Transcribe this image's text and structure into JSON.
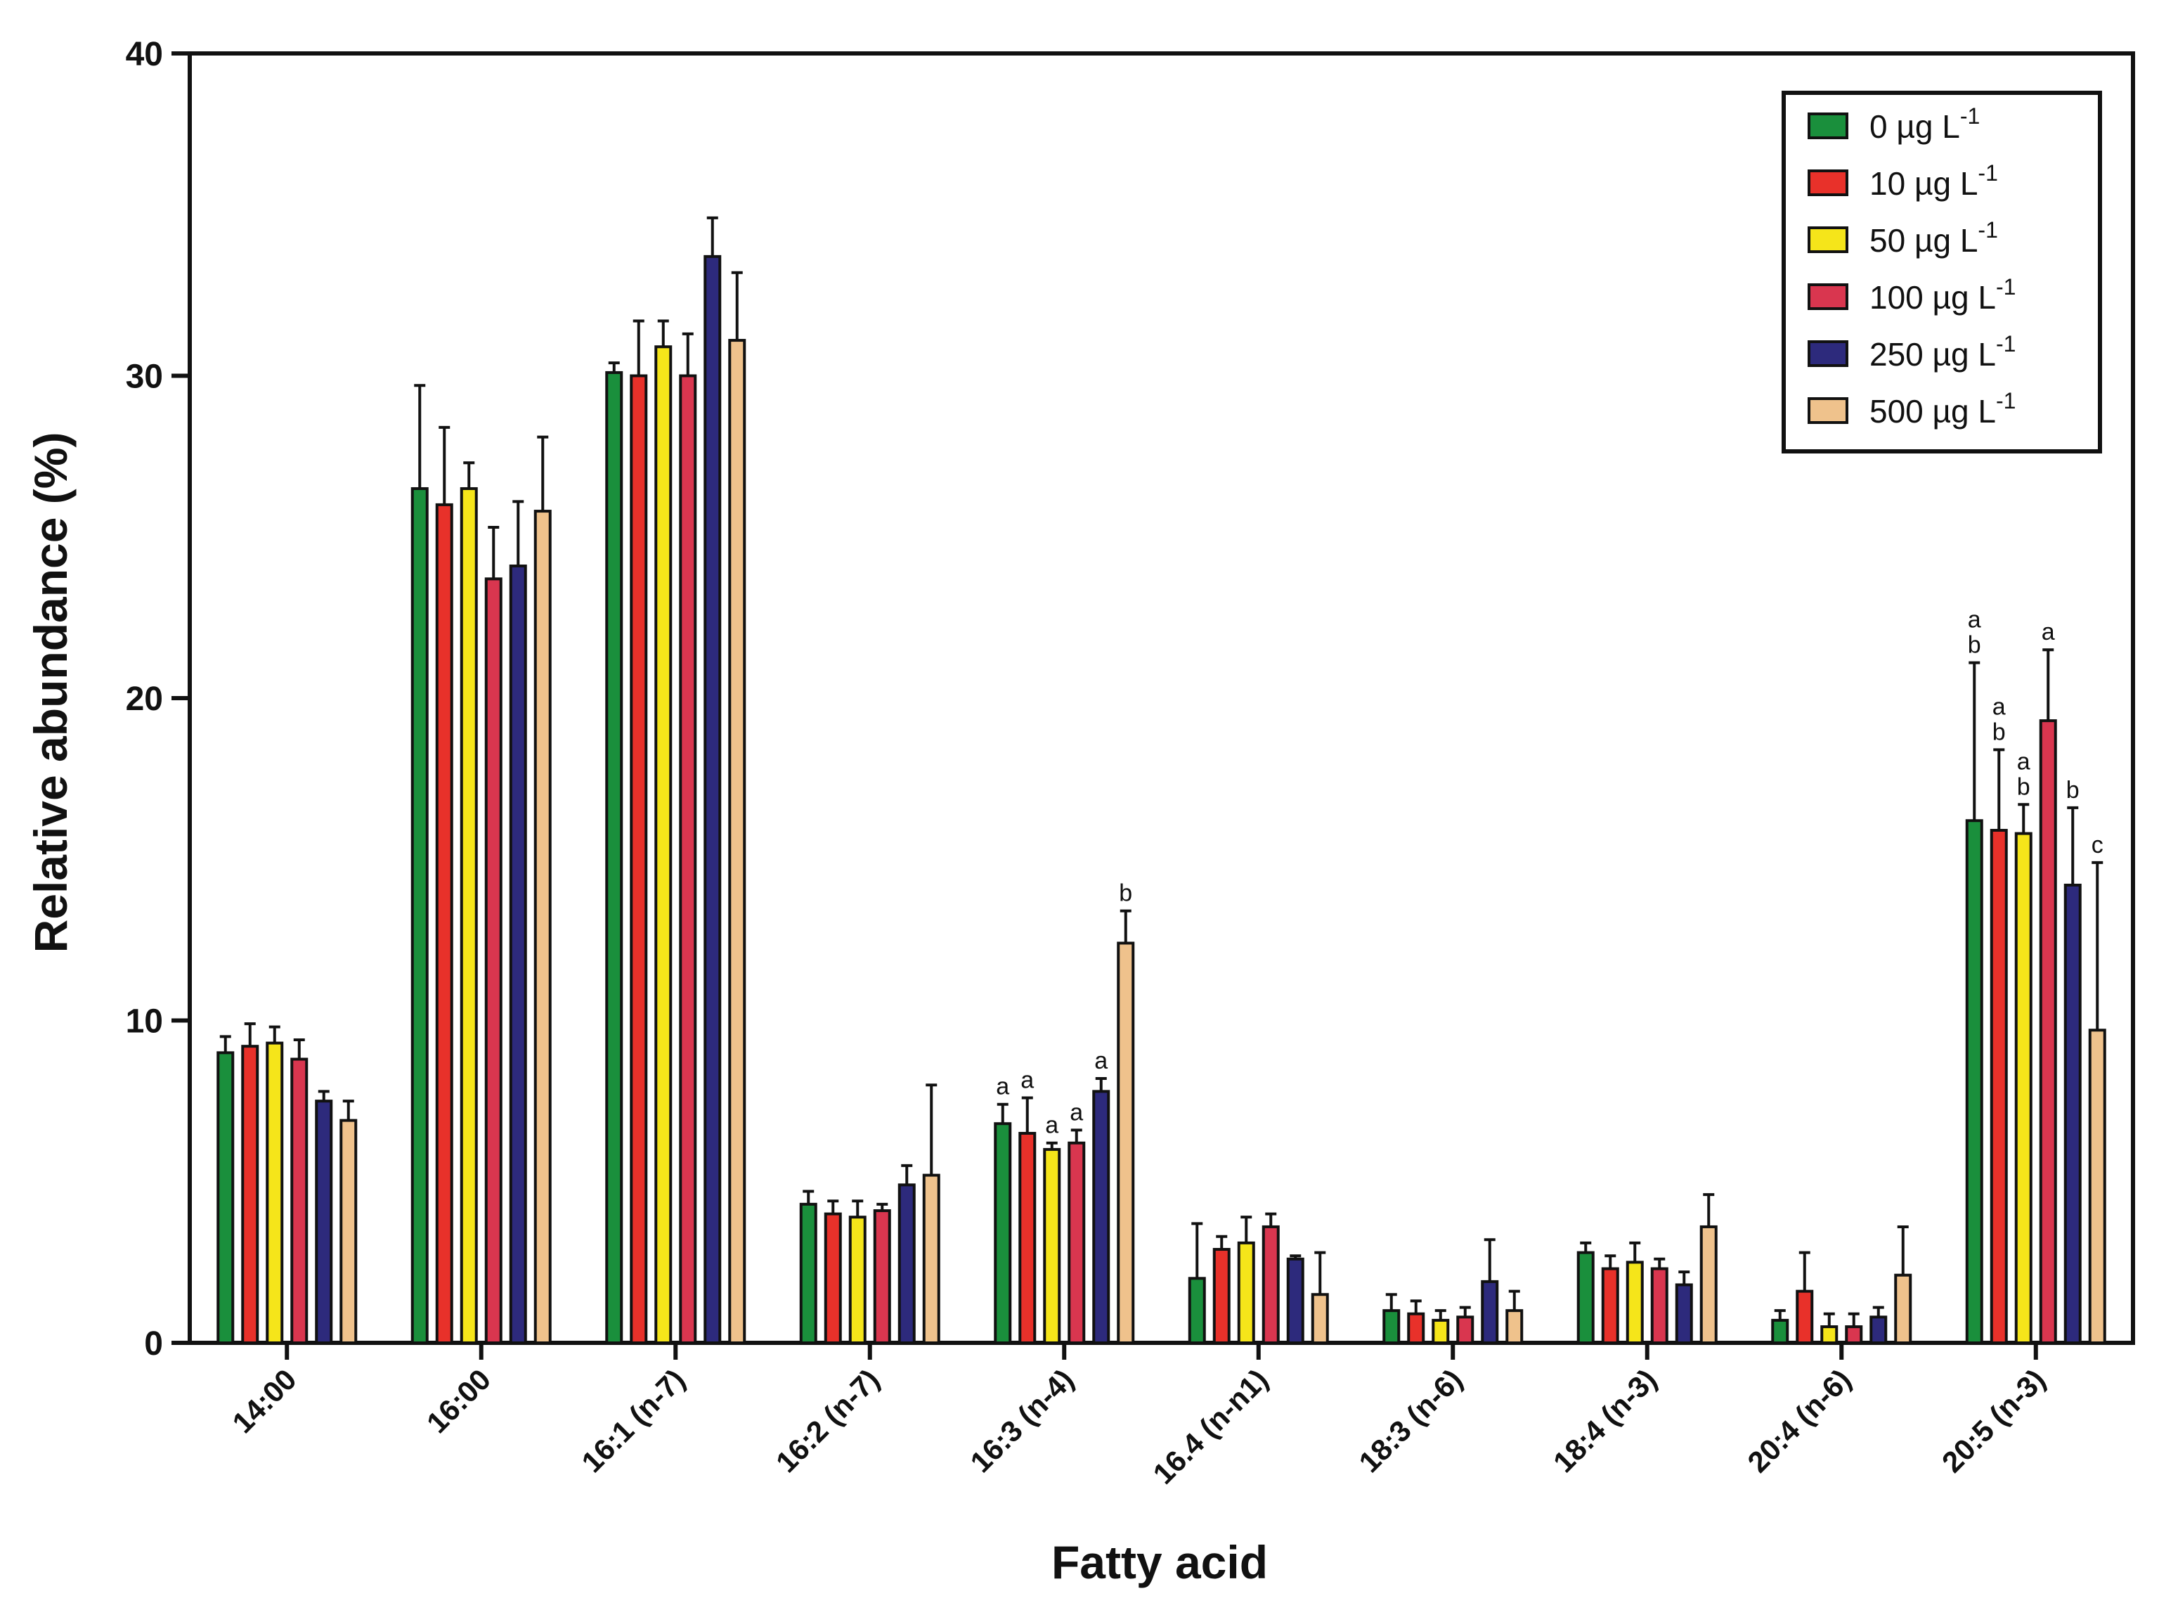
{
  "chart_data": {
    "type": "bar",
    "title": "",
    "xlabel": "Fatty acid",
    "ylabel": "Relative abundance (%)",
    "ylim": [
      0,
      40
    ],
    "yticks": [
      "0",
      "10",
      "20",
      "30",
      "40"
    ],
    "grid": false,
    "legend_position": "top-right",
    "categories": [
      "14:00",
      "16:00",
      "16:1 (n-7)",
      "16:2 (n-7)",
      "16:3 (n-4)",
      "16.4 (n-n1)",
      "18:3 (n-6)",
      "18:4 (n-3)",
      "20:4 (n-6)",
      "20:5 (n-3)"
    ],
    "series": [
      {
        "name": "0 µg L",
        "superscript": "-1",
        "color": "#1a8f3c",
        "values": [
          9.0,
          26.5,
          30.1,
          4.3,
          6.8,
          2.0,
          1.0,
          2.8,
          0.7,
          16.2
        ],
        "errors": [
          0.5,
          3.2,
          0.3,
          0.4,
          0.6,
          1.7,
          0.5,
          0.3,
          0.3,
          4.9
        ],
        "annotations": [
          "",
          "",
          "",
          "",
          "a",
          "",
          "",
          "",
          "",
          "ab"
        ]
      },
      {
        "name": "10 µg L",
        "superscript": "-1",
        "color": "#e8312a",
        "values": [
          9.2,
          26.0,
          30.0,
          4.0,
          6.5,
          2.9,
          0.9,
          2.3,
          1.6,
          15.9
        ],
        "errors": [
          0.7,
          2.4,
          1.7,
          0.4,
          1.1,
          0.4,
          0.4,
          0.4,
          1.2,
          2.5
        ],
        "annotations": [
          "",
          "",
          "",
          "",
          "a",
          "",
          "",
          "",
          "",
          "ab"
        ]
      },
      {
        "name": "50 µg L",
        "superscript": "-1",
        "color": "#f5e51a",
        "values": [
          9.3,
          26.5,
          30.9,
          3.9,
          6.0,
          3.1,
          0.7,
          2.5,
          0.5,
          15.8
        ],
        "errors": [
          0.5,
          0.8,
          0.8,
          0.5,
          0.2,
          0.8,
          0.3,
          0.6,
          0.4,
          0.9
        ],
        "annotations": [
          "",
          "",
          "",
          "",
          "a",
          "",
          "",
          "",
          "",
          "ab"
        ]
      },
      {
        "name": "100 µg L",
        "superscript": "-1",
        "color": "#d9364f",
        "values": [
          8.8,
          23.7,
          30.0,
          4.1,
          6.2,
          3.6,
          0.8,
          2.3,
          0.5,
          19.3
        ],
        "errors": [
          0.6,
          1.6,
          1.3,
          0.2,
          0.4,
          0.4,
          0.3,
          0.3,
          0.4,
          2.2
        ],
        "annotations": [
          "",
          "",
          "",
          "",
          "a",
          "",
          "",
          "",
          "",
          "a"
        ]
      },
      {
        "name": "250 µg L",
        "superscript": "-1",
        "color": "#2d2a7c",
        "values": [
          7.5,
          24.1,
          33.7,
          4.9,
          7.8,
          2.6,
          1.9,
          1.8,
          0.8,
          14.2
        ],
        "errors": [
          0.3,
          2.0,
          1.2,
          0.6,
          0.4,
          0.1,
          1.3,
          0.4,
          0.3,
          2.4
        ],
        "annotations": [
          "",
          "",
          "",
          "",
          "a",
          "",
          "",
          "",
          "",
          "b"
        ]
      },
      {
        "name": "500 µg L",
        "superscript": "-1",
        "color": "#efc28c",
        "values": [
          6.9,
          25.8,
          31.1,
          5.2,
          12.4,
          1.5,
          1.0,
          3.6,
          2.1,
          9.7
        ],
        "errors": [
          0.6,
          2.3,
          2.1,
          2.8,
          1.0,
          1.3,
          0.6,
          1.0,
          1.5,
          5.2
        ],
        "annotations": [
          "",
          "",
          "",
          "",
          "b",
          "",
          "",
          "",
          "",
          "c"
        ]
      }
    ]
  }
}
